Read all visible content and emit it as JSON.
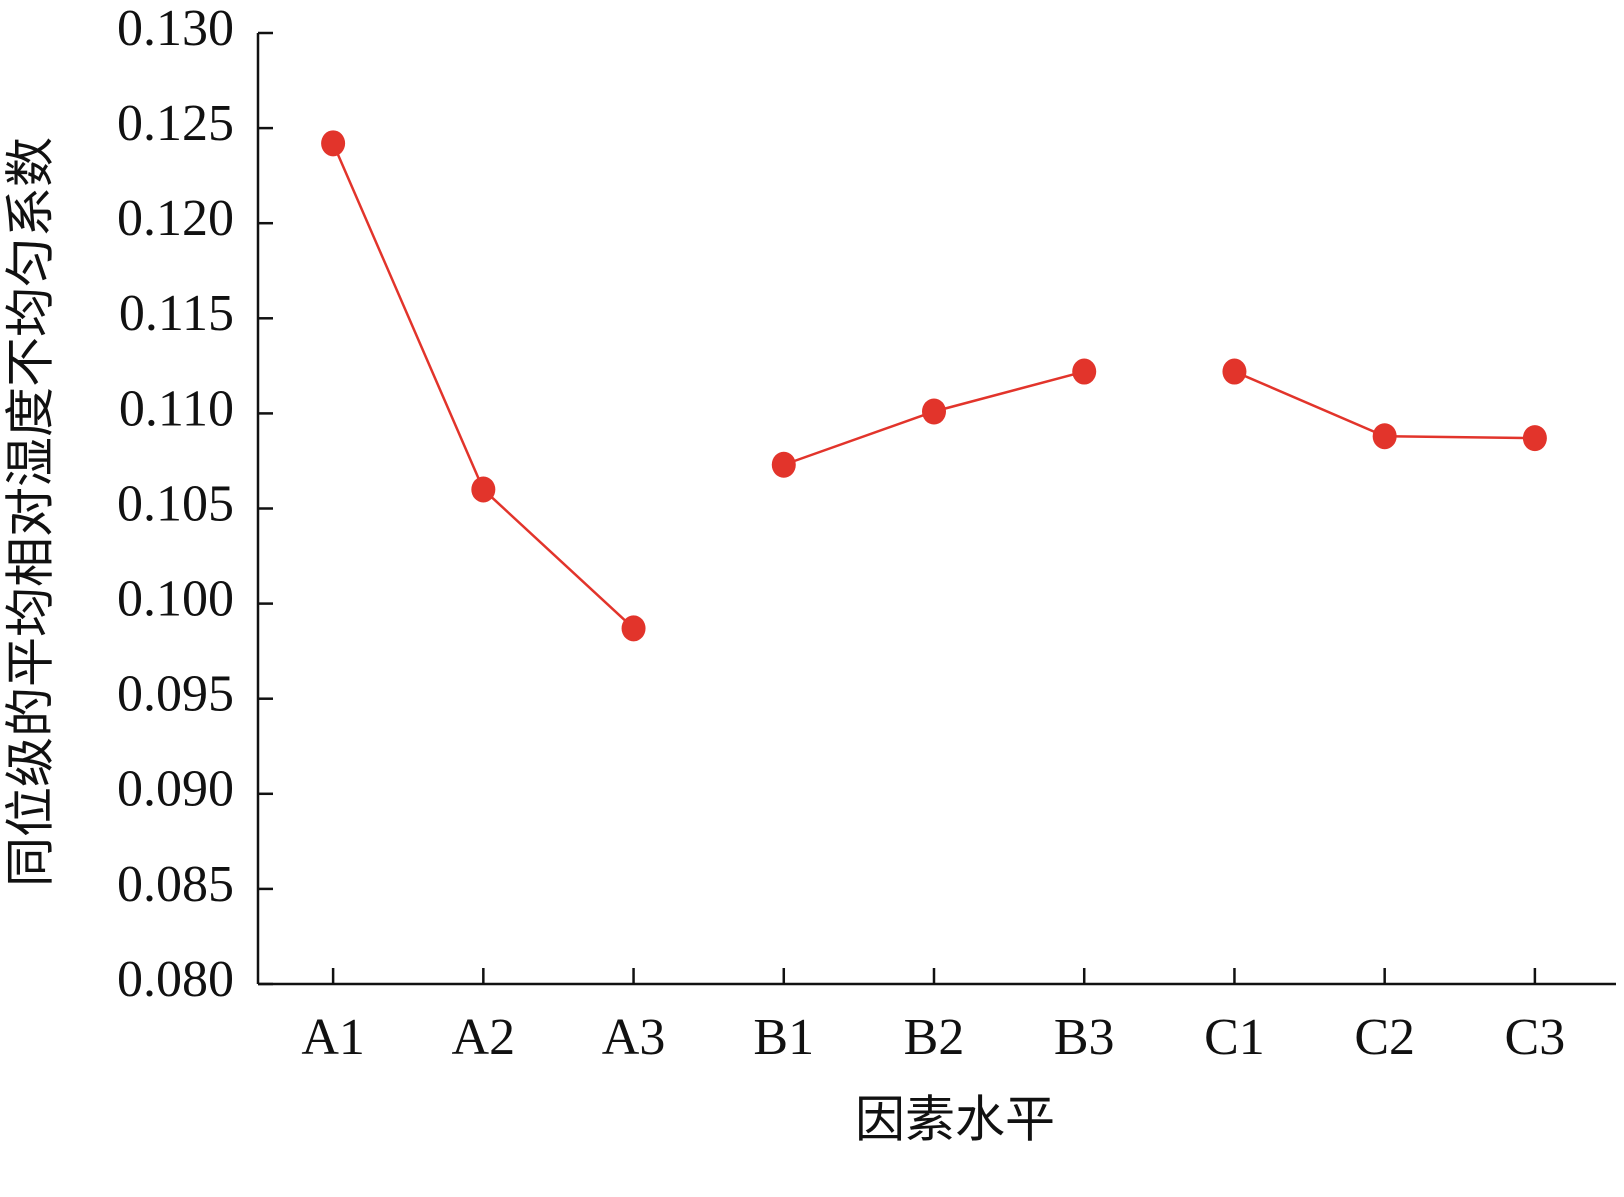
{
  "chart_data": {
    "type": "line",
    "x_label": "因素水平",
    "y_label": "同位级的平均相对湿度不均匀系数",
    "categories": [
      "A1",
      "A2",
      "A3",
      "B1",
      "B2",
      "B3",
      "C1",
      "C2",
      "C3"
    ],
    "series": [
      {
        "color": "#e2342b",
        "values": [
          0.1242,
          0.106,
          0.0987,
          null,
          null,
          null,
          null,
          null,
          null
        ]
      },
      {
        "color": "#e2342b",
        "values": [
          null,
          null,
          null,
          0.1073,
          0.1101,
          0.1122,
          null,
          null,
          null
        ]
      },
      {
        "color": "#e2342b",
        "values": [
          null,
          null,
          null,
          null,
          null,
          null,
          0.1122,
          0.1088,
          0.1087
        ]
      }
    ],
    "ylim": [
      0.08,
      0.13
    ],
    "yticks": [
      {
        "value": 0.08,
        "label": "0.080"
      },
      0.085,
      {
        "value": 0.09,
        "label": "0.090"
      },
      0.095,
      {
        "value": 0.1,
        "label": "0.100"
      },
      0.105,
      {
        "value": 0.11,
        "label": "0.110"
      },
      0.115,
      {
        "value": 0.12,
        "label": "0.120"
      },
      0.125,
      {
        "value": 0.13,
        "label": "0.130"
      }
    ],
    "grid": false
  }
}
